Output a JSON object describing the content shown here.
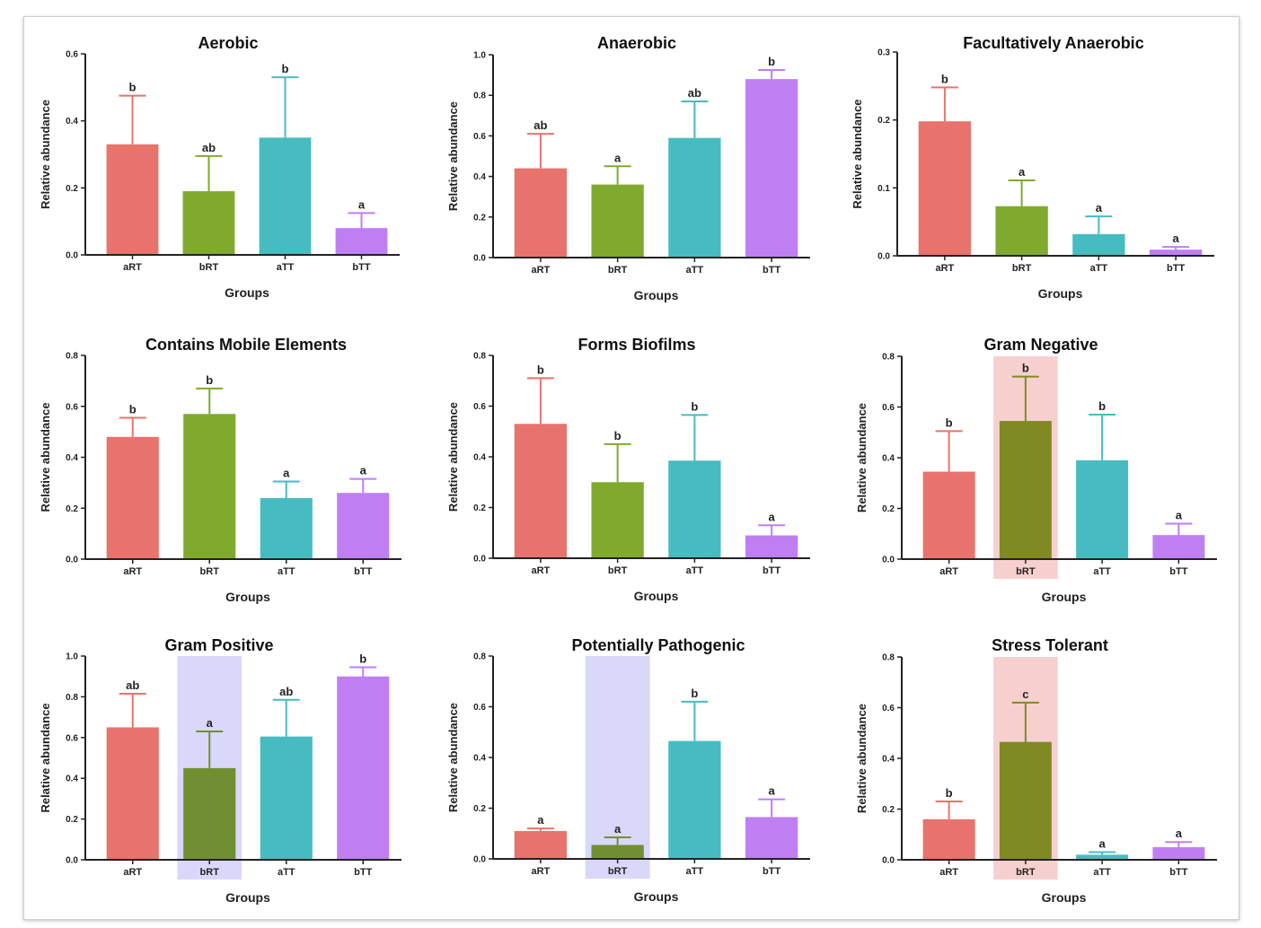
{
  "figure": {
    "colors": {
      "aRT": "#e8736c",
      "bRT": "#7faa2d",
      "aTT": "#47bcc0",
      "bTT": "#bf7ff3",
      "bRT_shaded": "#718f32",
      "bRT_olive": "#808a22",
      "highlight_pink": "#f6d0cf",
      "highlight_lavender": "#d9d8fb",
      "axis": "#222222"
    }
  },
  "chart_data": [
    {
      "type": "bar",
      "title": "Aerobic",
      "xlabel": "Groups",
      "ylabel": "Relative abundance",
      "categories": [
        "aRT",
        "bRT",
        "aTT",
        "bTT"
      ],
      "values": [
        0.33,
        0.19,
        0.35,
        0.08
      ],
      "errors": [
        0.145,
        0.105,
        0.18,
        0.045
      ],
      "letters": [
        "b",
        "ab",
        "b",
        "a"
      ],
      "ylim": [
        0,
        0.6
      ],
      "yticks": [
        "0.0",
        "0.2",
        "0.4",
        "0.6"
      ],
      "highlight": null
    },
    {
      "type": "bar",
      "title": "Anaerobic",
      "xlabel": "Groups",
      "ylabel": "Relative abundance",
      "categories": [
        "aRT",
        "bRT",
        "aTT",
        "bTT"
      ],
      "values": [
        0.44,
        0.36,
        0.59,
        0.88
      ],
      "errors": [
        0.17,
        0.09,
        0.18,
        0.045
      ],
      "letters": [
        "ab",
        "a",
        "ab",
        "b"
      ],
      "ylim": [
        0,
        1.0
      ],
      "yticks": [
        "0.0",
        "0.2",
        "0.4",
        "0.6",
        "0.8",
        "1.0"
      ],
      "highlight": null
    },
    {
      "type": "bar",
      "title": "Facultatively Anaerobic",
      "xlabel": "Groups",
      "ylabel": "Relative abundance",
      "categories": [
        "aRT",
        "bRT",
        "aTT",
        "bTT"
      ],
      "values": [
        0.198,
        0.073,
        0.032,
        0.009
      ],
      "errors": [
        0.05,
        0.038,
        0.026,
        0.004
      ],
      "letters": [
        "b",
        "a",
        "a",
        "a"
      ],
      "ylim": [
        0,
        0.3
      ],
      "yticks": [
        "0.0",
        "0.1",
        "0.2",
        "0.3"
      ],
      "highlight": null
    },
    {
      "type": "bar",
      "title": "Contains Mobile Elements",
      "xlabel": "Groups",
      "ylabel": "Relative abundance",
      "categories": [
        "aRT",
        "bRT",
        "aTT",
        "bTT"
      ],
      "values": [
        0.48,
        0.57,
        0.24,
        0.26
      ],
      "errors": [
        0.075,
        0.1,
        0.065,
        0.055
      ],
      "letters": [
        "b",
        "b",
        "a",
        "a"
      ],
      "ylim": [
        0,
        0.8
      ],
      "yticks": [
        "0.0",
        "0.2",
        "0.4",
        "0.6",
        "0.8"
      ],
      "highlight": null
    },
    {
      "type": "bar",
      "title": "Forms Biofilms",
      "xlabel": "Groups",
      "ylabel": "Relative abundance",
      "categories": [
        "aRT",
        "bRT",
        "aTT",
        "bTT"
      ],
      "values": [
        0.53,
        0.3,
        0.385,
        0.09
      ],
      "errors": [
        0.18,
        0.15,
        0.18,
        0.04
      ],
      "letters": [
        "b",
        "b",
        "b",
        "a"
      ],
      "ylim": [
        0,
        0.8
      ],
      "yticks": [
        "0.0",
        "0.2",
        "0.4",
        "0.6",
        "0.8"
      ],
      "highlight": null
    },
    {
      "type": "bar",
      "title": "Gram Negative",
      "xlabel": "Groups",
      "ylabel": "Relative abundance",
      "categories": [
        "aRT",
        "bRT",
        "aTT",
        "bTT"
      ],
      "values": [
        0.345,
        0.545,
        0.39,
        0.095
      ],
      "errors": [
        0.16,
        0.175,
        0.18,
        0.045
      ],
      "letters": [
        "b",
        "b",
        "b",
        "a"
      ],
      "ylim": [
        0,
        0.8
      ],
      "yticks": [
        "0.0",
        "0.2",
        "0.4",
        "0.6",
        "0.8"
      ],
      "highlight": {
        "index": 1,
        "color": "pink"
      }
    },
    {
      "type": "bar",
      "title": "Gram Positive",
      "xlabel": "Groups",
      "ylabel": "Relative abundance",
      "categories": [
        "aRT",
        "bRT",
        "aTT",
        "bTT"
      ],
      "values": [
        0.65,
        0.45,
        0.605,
        0.9
      ],
      "errors": [
        0.165,
        0.18,
        0.18,
        0.045
      ],
      "letters": [
        "ab",
        "a",
        "ab",
        "b"
      ],
      "ylim": [
        0,
        1.0
      ],
      "yticks": [
        "0.0",
        "0.2",
        "0.4",
        "0.6",
        "0.8",
        "1.0"
      ],
      "highlight": {
        "index": 1,
        "color": "lavender"
      }
    },
    {
      "type": "bar",
      "title": "Potentially Pathogenic",
      "xlabel": "Groups",
      "ylabel": "Relative abundance",
      "categories": [
        "aRT",
        "bRT",
        "aTT",
        "bTT"
      ],
      "values": [
        0.11,
        0.055,
        0.465,
        0.165
      ],
      "errors": [
        0.01,
        0.03,
        0.155,
        0.07
      ],
      "letters": [
        "a",
        "a",
        "b",
        "a"
      ],
      "ylim": [
        0,
        0.8
      ],
      "yticks": [
        "0.0",
        "0.2",
        "0.4",
        "0.6",
        "0.8"
      ],
      "highlight": {
        "index": 1,
        "color": "lavender"
      }
    },
    {
      "type": "bar",
      "title": "Stress Tolerant",
      "xlabel": "Groups",
      "ylabel": "Relative abundance",
      "categories": [
        "aRT",
        "bRT",
        "aTT",
        "bTT"
      ],
      "values": [
        0.16,
        0.465,
        0.02,
        0.05
      ],
      "errors": [
        0.07,
        0.155,
        0.01,
        0.02
      ],
      "letters": [
        "b",
        "c",
        "a",
        "a"
      ],
      "ylim": [
        0,
        0.8
      ],
      "yticks": [
        "0.0",
        "0.2",
        "0.4",
        "0.6",
        "0.8"
      ],
      "highlight": {
        "index": 1,
        "color": "pink"
      }
    }
  ]
}
